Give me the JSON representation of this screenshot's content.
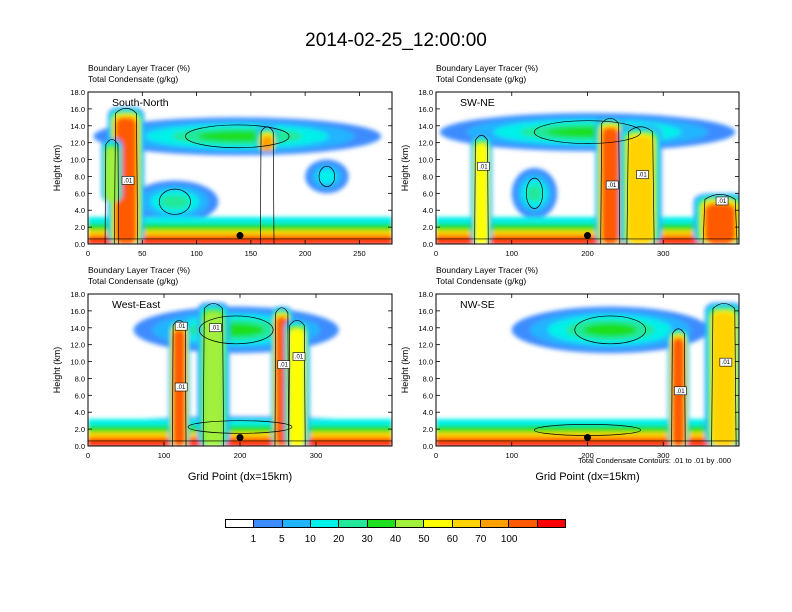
{
  "title": "2014-02-25_12:00:00",
  "footnote": "Total Condensate Contours: .01 to .01 by .000",
  "colorbar": {
    "colors": [
      "#ffffff",
      "#3c8cff",
      "#20b4ff",
      "#00f0ea",
      "#23e89a",
      "#1ee01e",
      "#a0f03c",
      "#ffff00",
      "#ffd200",
      "#ffa000",
      "#ff5a00",
      "#ff0000"
    ],
    "labels": [
      "1",
      "5",
      "10",
      "20",
      "30",
      "40",
      "50",
      "60",
      "70",
      "100"
    ]
  },
  "chart_data": [
    {
      "type": "heatmap",
      "subtitle_line1": "Boundary Layer Tracer    (%)",
      "subtitle_line2": "Total Condensate    (g/kg)",
      "panel_label": "South-North",
      "ylabel": "Height (km)",
      "xlabel": "",
      "ylim": [
        0,
        18
      ],
      "xlim": [
        0,
        280
      ],
      "xticks": [
        "0",
        "50",
        "100",
        "150",
        "200",
        "250"
      ],
      "yticks": [
        "0.0",
        "2.0",
        "4.0",
        "6.0",
        "8.0",
        "10.0",
        "12.0",
        "14.0",
        "16.0",
        "18.0"
      ],
      "contour_labels": [
        ".01"
      ],
      "marker": [
        140,
        1.0
      ],
      "plumes": [
        {
          "x": 35,
          "xr": 12,
          "base": 0,
          "top": 16.2,
          "level": 10
        },
        {
          "x": 22,
          "xr": 7,
          "base": 5.0,
          "top": 12.5,
          "level": 6
        },
        {
          "x": 165,
          "xr": 7,
          "base": 11.0,
          "top": 14.0,
          "level": 9
        }
      ],
      "layers": [
        {
          "x0": 5,
          "x1": 270,
          "base": 10.5,
          "top": 15.0,
          "level": 5
        },
        {
          "x0": 40,
          "x1": 120,
          "base": 2.5,
          "top": 7.5,
          "level": 4
        },
        {
          "x0": 200,
          "x1": 240,
          "base": 6.0,
          "top": 10.0,
          "level": 3
        }
      ]
    },
    {
      "type": "heatmap",
      "subtitle_line1": "Boundary Layer Tracer    (%)",
      "subtitle_line2": "Total Condensate    (g/kg)",
      "panel_label": "SW-NE",
      "ylabel": "Height (km)",
      "xlabel": "",
      "ylim": [
        0,
        18
      ],
      "xlim": [
        0,
        400
      ],
      "xticks": [
        "0",
        "100",
        "200",
        "300"
      ],
      "yticks": [
        "0.0",
        "2.0",
        "4.0",
        "6.0",
        "8.0",
        "10.0",
        "12.0",
        "14.0",
        "16.0",
        "18.0"
      ],
      "contour_labels": [
        ".01",
        ".01",
        ".01",
        ".01"
      ],
      "marker": [
        200,
        1.0
      ],
      "plumes": [
        {
          "x": 230,
          "xr": 14,
          "base": 0,
          "top": 15.0,
          "level": 10
        },
        {
          "x": 270,
          "xr": 20,
          "base": 0,
          "top": 14.0,
          "level": 8
        },
        {
          "x": 60,
          "xr": 10,
          "base": 0,
          "top": 13.0,
          "level": 7
        },
        {
          "x": 375,
          "xr": 25,
          "base": 0,
          "top": 6.0,
          "level": 10
        }
      ],
      "layers": [
        {
          "x0": 5,
          "x1": 395,
          "base": 11.0,
          "top": 15.5,
          "level": 5
        },
        {
          "x0": 100,
          "x1": 160,
          "base": 3.0,
          "top": 9.0,
          "level": 4
        }
      ]
    },
    {
      "type": "heatmap",
      "subtitle_line1": "Boundary Layer Tracer    (%)",
      "subtitle_line2": "Total Condensate    (g/kg)",
      "panel_label": "West-East",
      "ylabel": "Height (km)",
      "xlabel": "Grid Point (dx=15km)",
      "ylim": [
        0,
        18
      ],
      "xlim": [
        0,
        400
      ],
      "xticks": [
        "0",
        "100",
        "200",
        "300"
      ],
      "yticks": [
        "0.0",
        "2.0",
        "4.0",
        "6.0",
        "8.0",
        "10.0",
        "12.0",
        "14.0",
        "16.0",
        "18.0"
      ],
      "contour_labels": [
        ".01",
        ".01",
        ".01",
        ".01",
        ".01"
      ],
      "marker": [
        200,
        1.0
      ],
      "plumes": [
        {
          "x": 120,
          "xr": 10,
          "base": 0,
          "top": 15.0,
          "level": 10
        },
        {
          "x": 255,
          "xr": 10,
          "base": 0,
          "top": 16.5,
          "level": 10
        },
        {
          "x": 275,
          "xr": 12,
          "base": 0,
          "top": 15.0,
          "level": 7
        },
        {
          "x": 165,
          "xr": 15,
          "base": 0,
          "top": 17.0,
          "level": 6
        }
      ],
      "layers": [
        {
          "x0": 60,
          "x1": 330,
          "base": 11.0,
          "top": 16.5,
          "level": 5
        },
        {
          "x0": 10,
          "x1": 390,
          "base": 1.0,
          "top": 3.5,
          "level": 4
        }
      ]
    },
    {
      "type": "heatmap",
      "subtitle_line1": "Boundary Layer Tracer    (%)",
      "subtitle_line2": "Total Condensate    (g/kg)",
      "panel_label": "NW-SE",
      "ylabel": "Height (km)",
      "xlabel": "Grid Point (dx=15km)",
      "ylim": [
        0,
        18
      ],
      "xlim": [
        0,
        400
      ],
      "xticks": [
        "0",
        "100",
        "200",
        "300"
      ],
      "yticks": [
        "0.0",
        "2.0",
        "4.0",
        "6.0",
        "8.0",
        "10.0",
        "12.0",
        "14.0",
        "16.0",
        "18.0"
      ],
      "contour_labels": [
        ".01",
        ".01"
      ],
      "marker": [
        200,
        1.0
      ],
      "plumes": [
        {
          "x": 320,
          "xr": 10,
          "base": 0,
          "top": 14.0,
          "level": 10
        },
        {
          "x": 380,
          "xr": 18,
          "base": 0,
          "top": 17.0,
          "level": 8
        }
      ],
      "layers": [
        {
          "x0": 100,
          "x1": 360,
          "base": 11.0,
          "top": 16.5,
          "level": 5
        },
        {
          "x0": 5,
          "x1": 395,
          "base": 0.8,
          "top": 3.0,
          "level": 4
        }
      ]
    }
  ]
}
